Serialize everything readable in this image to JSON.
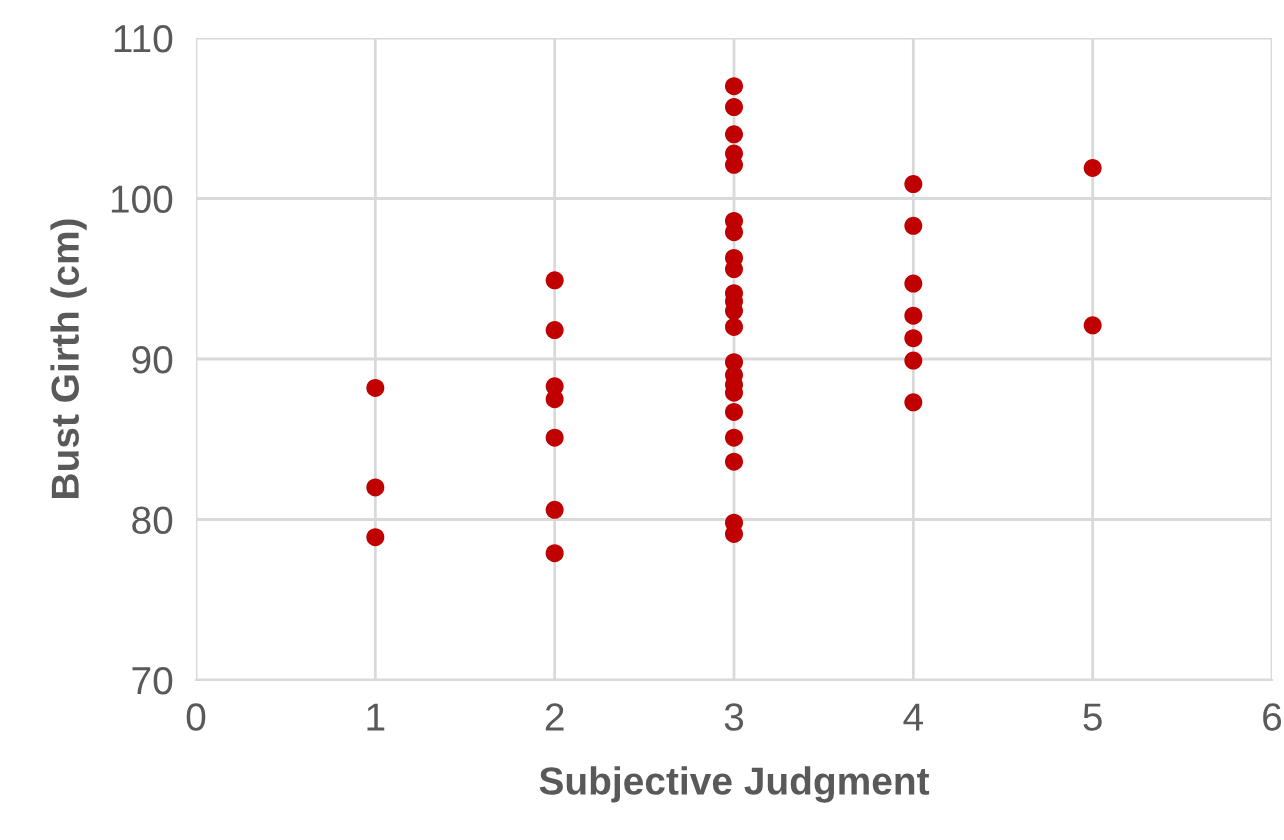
{
  "chart_data": {
    "type": "scatter",
    "xlabel": "Subjective Judgment",
    "ylabel": "Bust Girth (cm)",
    "x": [
      1,
      1,
      1,
      2,
      2,
      2,
      2,
      2,
      2,
      2,
      3,
      3,
      3,
      3,
      3,
      3,
      3,
      3,
      3,
      3,
      3,
      3,
      3,
      3,
      3,
      3,
      3,
      3,
      3,
      3,
      3,
      3,
      4,
      4,
      4,
      4,
      4,
      4,
      4,
      5,
      5
    ],
    "values": [
      88.2,
      82,
      78.9,
      94.9,
      91.8,
      88.3,
      87.5,
      85.1,
      80.6,
      77.9,
      107,
      105.7,
      104,
      102.8,
      102.1,
      98.6,
      97.9,
      96.3,
      95.6,
      94.1,
      93.6,
      93,
      92,
      89.8,
      89,
      88.4,
      87.9,
      86.7,
      85.1,
      83.6,
      79.8,
      79.1,
      100.9,
      98.3,
      94.7,
      92.7,
      91.3,
      89.9,
      87.3,
      101.9,
      92.1
    ],
    "color": "#c00000",
    "marker": "circle",
    "grid": true,
    "xlim": [
      0,
      6
    ],
    "xticks": [
      0,
      1,
      2,
      3,
      4,
      5,
      6
    ],
    "ylim": [
      70,
      110
    ],
    "yticks": [
      70,
      80,
      90,
      100,
      110
    ]
  }
}
